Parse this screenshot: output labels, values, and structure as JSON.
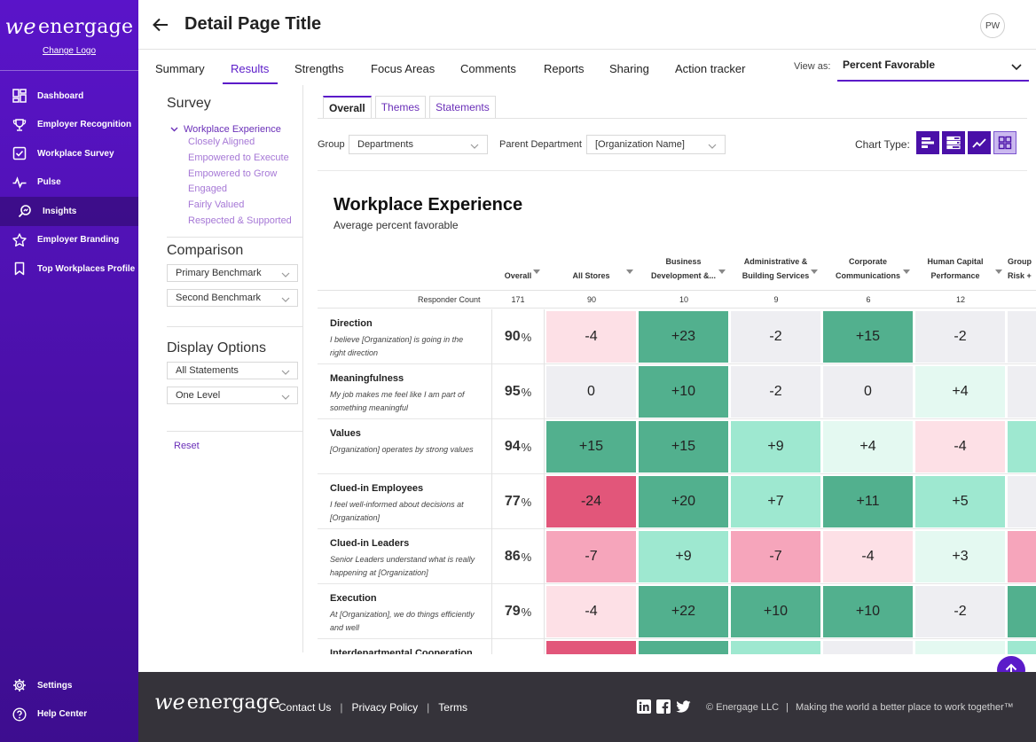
{
  "brand": {
    "logo_text": "energage",
    "logo_mark": "we",
    "change_logo": "Change Logo"
  },
  "sidebar": {
    "items": [
      {
        "label": "Dashboard",
        "icon": "dashboard-icon"
      },
      {
        "label": "Employer Recognition",
        "icon": "trophy-icon"
      },
      {
        "label": "Workplace Survey",
        "icon": "checkbox-icon"
      },
      {
        "label": "Pulse",
        "icon": "pulse-icon"
      },
      {
        "label": "Insights",
        "icon": "insights-icon",
        "active": true
      },
      {
        "label": "Employer Branding",
        "icon": "star-icon"
      },
      {
        "label": "Top Workplaces Profile",
        "icon": "bookmark-icon"
      }
    ],
    "bottom_items": [
      {
        "label": "Settings",
        "icon": "gear-icon"
      },
      {
        "label": "Help Center",
        "icon": "help-icon"
      }
    ]
  },
  "header": {
    "title": "Detail Page Title",
    "avatar_initials": "PW"
  },
  "tabs": [
    "Summary",
    "Results",
    "Strengths",
    "Focus Areas",
    "Comments",
    "Reports",
    "Sharing",
    "Action tracker"
  ],
  "active_tab": "Results",
  "view_as": {
    "label": "View as:",
    "value": "Percent Favorable"
  },
  "filters": {
    "survey_heading": "Survey",
    "tree_root": "Workplace Experience",
    "tree_children": [
      "Closely Aligned",
      "Empowered to Execute",
      "Empowered to Grow",
      "Engaged",
      "Fairly Valued",
      "Respected & Supported"
    ],
    "comparison_heading": "Comparison",
    "comparison_selects": [
      "Primary Benchmark",
      "Second Benchmark"
    ],
    "display_heading": "Display Options",
    "display_selects": [
      "All Statements",
      "One Level"
    ],
    "reset": "Reset"
  },
  "subtabs": [
    "Overall",
    "Themes",
    "Statements"
  ],
  "group_row": {
    "group_label": "Group",
    "group_value": "Departments",
    "parent_label": "Parent Department",
    "parent_value": "[Organization Name]",
    "chart_type_label": "Chart Type:"
  },
  "chart": {
    "title": "Workplace Experience",
    "subtitle": "Average percent favorable",
    "columns": [
      {
        "lines": [
          "Overall"
        ]
      },
      {
        "lines": [
          "All Stores"
        ]
      },
      {
        "lines": [
          "Business",
          "Development &..."
        ]
      },
      {
        "lines": [
          "Administrative &",
          "Building Services"
        ]
      },
      {
        "lines": [
          "Corporate",
          "Communications"
        ]
      },
      {
        "lines": [
          "Human Capital",
          "Performance"
        ]
      },
      {
        "lines": [
          "Group",
          "Risk +"
        ]
      }
    ],
    "responder_label": "Responder Count",
    "responder_counts": [
      "171",
      "90",
      "10",
      "9",
      "6",
      "12"
    ],
    "rows": [
      {
        "title": "Direction",
        "desc": "I believe [Organization] is going in the right direction",
        "overall": "90",
        "values": [
          "-4",
          "+23",
          "-2",
          "+15",
          "-2"
        ]
      },
      {
        "title": "Meaningfulness",
        "desc": "My job makes me feel like I am part of something meaningful",
        "overall": "95",
        "values": [
          "0",
          "+10",
          "-2",
          "0",
          "+4"
        ]
      },
      {
        "title": "Values",
        "desc": "[Organization] operates by strong values",
        "overall": "94",
        "values": [
          "+15",
          "+15",
          "+9",
          "+4",
          "-4"
        ]
      },
      {
        "title": "Clued-in Employees",
        "desc": "I feel well-informed about decisions at [Organization]",
        "overall": "77",
        "values": [
          "-24",
          "+20",
          "+7",
          "+11",
          "+5"
        ]
      },
      {
        "title": "Clued-in Leaders",
        "desc": "Senior Leaders understand what is really happening at [Organization]",
        "overall": "86",
        "values": [
          "-7",
          "+9",
          "-7",
          "-4",
          "+3"
        ]
      },
      {
        "title": "Execution",
        "desc": "At [Organization], we do things efficiently and well",
        "overall": "79",
        "values": [
          "-4",
          "+22",
          "+10",
          "+10",
          "-2"
        ]
      },
      {
        "title": "Interdepartmental Cooperation",
        "desc": "",
        "overall": "",
        "values": [
          "",
          "",
          "",
          "",
          ""
        ]
      }
    ],
    "partial_column_colors": [
      "#eeeef2",
      "#eeeef2",
      "#9ee8d0",
      "#eeeef2",
      "#f6a5bb",
      "#52b08e",
      "#9ee8d0"
    ],
    "partial_bottom_colors": [
      "#e2567a",
      "#52b08e",
      "#9ee8d0",
      "#eeeef2",
      "#e4f9f1"
    ],
    "pct_symbol": "%"
  },
  "colors": {
    "accent": "#5b1bc9",
    "strong_pos": "#52b08e",
    "mid_pos": "#9ee8d0",
    "light_pos": "#e4f9f1",
    "neutral": "#eeeef2",
    "light_neg": "#fde0e6",
    "mid_neg": "#f6a5bb",
    "strong_neg": "#e2567a"
  },
  "footer": {
    "links": [
      "Contact Us",
      "Privacy Policy",
      "Terms"
    ],
    "copyright": "© Energage LLC",
    "tagline": "Making the world a better place to work together™"
  }
}
